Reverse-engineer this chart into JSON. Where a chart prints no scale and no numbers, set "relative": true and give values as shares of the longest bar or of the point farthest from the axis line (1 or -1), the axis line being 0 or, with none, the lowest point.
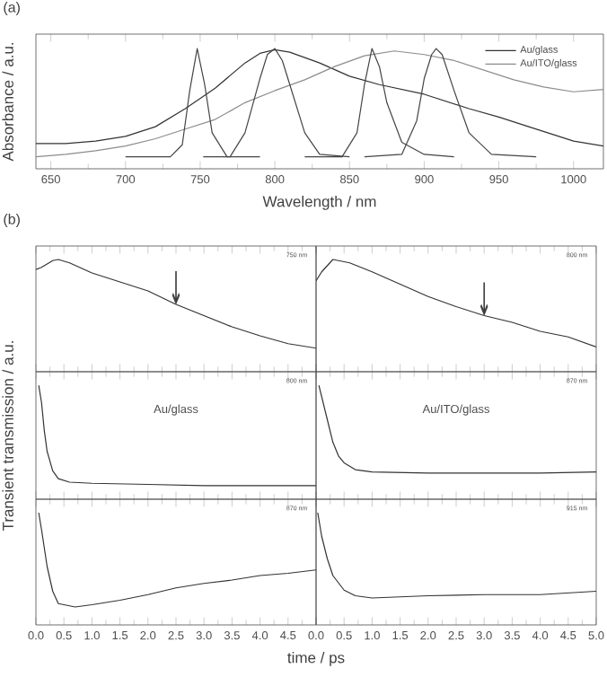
{
  "chart_data": [
    {
      "type": "line",
      "title": "(a)",
      "xlabel": "Wavelength / nm",
      "ylabel": "Absorbance / a.u.",
      "relative": true,
      "xlim": [
        640,
        1020
      ],
      "xticks": [
        650,
        700,
        750,
        800,
        850,
        900,
        950,
        1000
      ],
      "legend": "top right",
      "series": [
        {
          "name": "Au/glass",
          "color": "#333333",
          "x": [
            640,
            660,
            680,
            700,
            720,
            740,
            760,
            780,
            790,
            800,
            810,
            830,
            850,
            870,
            900,
            930,
            950,
            970,
            1000,
            1020
          ],
          "values": [
            0.21,
            0.21,
            0.23,
            0.27,
            0.35,
            0.5,
            0.67,
            0.88,
            0.96,
            0.99,
            0.97,
            0.88,
            0.77,
            0.7,
            0.62,
            0.5,
            0.43,
            0.35,
            0.23,
            0.19
          ]
        },
        {
          "name": "Au/ITO/glass",
          "color": "#8c8c8c",
          "x": [
            640,
            660,
            680,
            700,
            720,
            740,
            760,
            780,
            800,
            820,
            840,
            860,
            880,
            900,
            920,
            940,
            960,
            980,
            1000,
            1020
          ],
          "values": [
            0.1,
            0.12,
            0.15,
            0.19,
            0.25,
            0.33,
            0.41,
            0.55,
            0.65,
            0.74,
            0.85,
            0.94,
            0.98,
            0.95,
            0.9,
            0.82,
            0.74,
            0.68,
            0.64,
            0.66
          ]
        },
        {
          "color": "#444444",
          "x": [
            700,
            730,
            738,
            743,
            748,
            753,
            758,
            768,
            790
          ],
          "values": [
            0.1,
            0.1,
            0.2,
            0.65,
            1.0,
            0.7,
            0.3,
            0.1,
            0.1
          ]
        },
        {
          "color": "#444444",
          "x": [
            752,
            770,
            780,
            790,
            795,
            800,
            805,
            810,
            820,
            830,
            850
          ],
          "values": [
            0.1,
            0.1,
            0.3,
            0.75,
            0.95,
            1.0,
            0.9,
            0.7,
            0.3,
            0.12,
            0.1
          ]
        },
        {
          "color": "#444444",
          "x": [
            820,
            845,
            855,
            860,
            865,
            870,
            875,
            885,
            900,
            920
          ],
          "values": [
            0.1,
            0.1,
            0.3,
            0.7,
            1.0,
            0.85,
            0.55,
            0.22,
            0.12,
            0.1
          ]
        },
        {
          "color": "#444444",
          "x": [
            860,
            885,
            895,
            900,
            905,
            908,
            912,
            920,
            930,
            945,
            975
          ],
          "values": [
            0.1,
            0.12,
            0.4,
            0.75,
            0.95,
            1.0,
            0.95,
            0.65,
            0.3,
            0.12,
            0.1
          ]
        }
      ]
    },
    {
      "type": "line",
      "title": "(b)",
      "relative": true,
      "tick_labels": false,
      "xlim": [
        0,
        5
      ],
      "xticks": [
        0,
        0.5,
        1,
        1.5,
        2,
        2.5,
        3,
        3.5,
        4,
        4.5,
        5
      ],
      "annotations": [
        "750 nm",
        {
          "text": "↓",
          "x": 2.5,
          "y": 0.6
        }
      ],
      "series": [
        {
          "color": "#333333",
          "x": [
            0,
            0.1,
            0.3,
            0.4,
            0.6,
            1.0,
            1.5,
            2.0,
            2.5,
            3.0,
            3.5,
            4.0,
            4.5,
            5.0
          ],
          "values": [
            0.91,
            0.93,
            0.99,
            1.0,
            0.97,
            0.88,
            0.8,
            0.72,
            0.6,
            0.5,
            0.4,
            0.32,
            0.25,
            0.21
          ]
        }
      ]
    },
    {
      "type": "line",
      "relative": true,
      "tick_labels": false,
      "xlim": [
        0,
        5
      ],
      "xticks": [
        0,
        0.5,
        1,
        1.5,
        2,
        2.5,
        3,
        3.5,
        4,
        4.5,
        5
      ],
      "annotations": [
        "800 nm",
        {
          "text": "↓",
          "x": 3.0,
          "y": 0.5
        }
      ],
      "series": [
        {
          "color": "#333333",
          "x": [
            0,
            0.1,
            0.3,
            0.6,
            1.0,
            1.5,
            2.0,
            2.5,
            3.0,
            3.5,
            4.0,
            4.5,
            5.0
          ],
          "values": [
            0.81,
            0.89,
            1.0,
            0.97,
            0.89,
            0.78,
            0.67,
            0.58,
            0.5,
            0.44,
            0.36,
            0.31,
            0.22
          ]
        }
      ]
    },
    {
      "type": "line",
      "ylabel": "Transient transmission / a.u.",
      "relative": true,
      "tick_labels": false,
      "xlim": [
        0,
        5
      ],
      "xticks": [
        0,
        0.5,
        1,
        1.5,
        2,
        2.5,
        3,
        3.5,
        4,
        4.5,
        5
      ],
      "annotations": [
        "800 nm",
        "Au/glass"
      ],
      "series": [
        {
          "color": "#333333",
          "x": [
            0.05,
            0.1,
            0.15,
            0.2,
            0.3,
            0.4,
            0.6,
            1.0,
            2.0,
            3.0,
            4.0,
            5.0
          ],
          "values": [
            1.0,
            0.85,
            0.6,
            0.42,
            0.25,
            0.18,
            0.15,
            0.14,
            0.13,
            0.12,
            0.12,
            0.12
          ]
        }
      ]
    },
    {
      "type": "line",
      "relative": true,
      "tick_labels": false,
      "xlim": [
        0,
        5
      ],
      "xticks": [
        0,
        0.5,
        1,
        1.5,
        2,
        2.5,
        3,
        3.5,
        4,
        4.5,
        5
      ],
      "annotations": [
        "870 nm",
        "Au/ITO/glass"
      ],
      "series": [
        {
          "color": "#333333",
          "x": [
            0.05,
            0.1,
            0.2,
            0.3,
            0.4,
            0.5,
            0.7,
            1.0,
            2.0,
            3.0,
            4.0,
            5.0
          ],
          "values": [
            1.0,
            0.9,
            0.7,
            0.5,
            0.38,
            0.32,
            0.26,
            0.24,
            0.23,
            0.23,
            0.23,
            0.24
          ]
        }
      ]
    },
    {
      "type": "line",
      "xlabel": "time / ps",
      "relative": true,
      "xlim": [
        0,
        5
      ],
      "xticks": [
        {
          "value": 0,
          "label": "0.0"
        },
        {
          "value": 0.5,
          "label": "0.5"
        },
        {
          "value": 1,
          "label": "1.0"
        },
        {
          "value": 1.5,
          "label": "1.5"
        },
        {
          "value": 2,
          "label": "2.0"
        },
        {
          "value": 2.5,
          "label": "2.5"
        },
        {
          "value": 3,
          "label": "3.0"
        },
        {
          "value": 3.5,
          "label": "3.5"
        },
        {
          "value": 4,
          "label": "4.0"
        },
        {
          "value": 4.5,
          "label": "4.5"
        },
        {
          "value": 5,
          "label": null
        }
      ],
      "annotations": [
        "870 nm"
      ],
      "series": [
        {
          "color": "#333333",
          "x": [
            0.05,
            0.1,
            0.2,
            0.3,
            0.4,
            0.7,
            1.0,
            1.5,
            2.0,
            2.5,
            3.0,
            3.5,
            4.0,
            4.5,
            5.0
          ],
          "values": [
            1.0,
            0.85,
            0.52,
            0.3,
            0.19,
            0.16,
            0.18,
            0.22,
            0.27,
            0.33,
            0.37,
            0.4,
            0.44,
            0.46,
            0.49
          ]
        }
      ]
    },
    {
      "type": "line",
      "relative": true,
      "xlim": [
        0,
        5
      ],
      "xticks": [
        {
          "value": 0,
          "label": "0.0"
        },
        {
          "value": 0.5,
          "label": "0.5"
        },
        {
          "value": 1,
          "label": "1.0"
        },
        {
          "value": 1.5,
          "label": "1.5"
        },
        {
          "value": 2,
          "label": "2.0"
        },
        {
          "value": 2.5,
          "label": "2.5"
        },
        {
          "value": 3,
          "label": "3.0"
        },
        {
          "value": 3.5,
          "label": "3.5"
        },
        {
          "value": 4,
          "label": "4.0"
        },
        {
          "value": 4.5,
          "label": "4.5"
        },
        {
          "value": 5,
          "label": "5.0"
        }
      ],
      "annotations": [
        "915 nm"
      ],
      "series": [
        {
          "color": "#333333",
          "x": [
            0.03,
            0.1,
            0.2,
            0.3,
            0.5,
            0.7,
            1.0,
            2.0,
            3.0,
            4.0,
            5.0
          ],
          "values": [
            1.0,
            0.79,
            0.59,
            0.44,
            0.31,
            0.26,
            0.24,
            0.26,
            0.27,
            0.27,
            0.3
          ]
        }
      ]
    }
  ]
}
